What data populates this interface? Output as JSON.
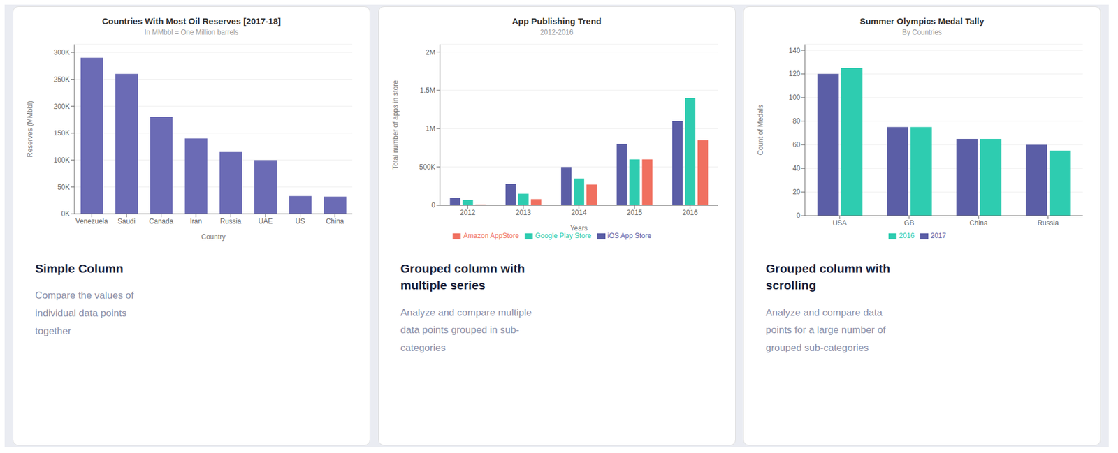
{
  "chart_data": [
    {
      "type": "bar",
      "title": "Countries With Most Oil Reserves [2017-18]",
      "subtitle": "In MMbbl = One Million barrels",
      "xlabel": "Country",
      "ylabel": "Reserves (MMbbl)",
      "categories": [
        "Venezuela",
        "Saudi",
        "Canada",
        "Iran",
        "Russia",
        "UAE",
        "US",
        "China"
      ],
      "values": [
        290000,
        260000,
        180000,
        140000,
        115000,
        100000,
        33000,
        32000
      ],
      "color": "#6b6bb5",
      "ylim": [
        0,
        315000
      ],
      "yticks": [
        {
          "value": 0,
          "label": "0K"
        },
        {
          "value": 50000,
          "label": "50K"
        },
        {
          "value": 100000,
          "label": "100K"
        },
        {
          "value": 150000,
          "label": "150K"
        },
        {
          "value": 200000,
          "label": "200K"
        },
        {
          "value": 250000,
          "label": "250K"
        },
        {
          "value": 300000,
          "label": "300K"
        }
      ],
      "grid": true,
      "annotations": [
        "Simple Column",
        "Compare the values of\nindividual data points\ntogether"
      ]
    },
    {
      "type": "bar",
      "title": "App Publishing Trend",
      "subtitle": "2012-2016",
      "xlabel": "Years",
      "ylabel": "Total number of apps in store",
      "categories": [
        "2012",
        "2013",
        "2014",
        "2015",
        "2016"
      ],
      "series": [
        {
          "name": "iOS App Store",
          "color": "#5b5ea6",
          "values": [
            100000,
            280000,
            500000,
            800000,
            1100000
          ]
        },
        {
          "name": "Google Play Store",
          "color": "#2eccb0",
          "values": [
            70000,
            150000,
            350000,
            600000,
            1400000
          ]
        },
        {
          "name": "Amazon AppStore",
          "color": "#f07060",
          "values": [
            10000,
            80000,
            270000,
            600000,
            850000
          ]
        }
      ],
      "ylim": [
        0,
        2100000
      ],
      "yticks": [
        0,
        {
          "value": 500000,
          "label": "500K"
        },
        {
          "value": 1000000,
          "label": "1M"
        },
        {
          "value": 1500000,
          "label": "1.5M"
        },
        {
          "value": 2000000,
          "label": "2M"
        }
      ],
      "grid": true,
      "legend": "bottom",
      "annotations": [
        "Grouped column with\nmultiple series",
        "Analyze and compare multiple\ndata points grouped in sub-\ncategories"
      ]
    },
    {
      "type": "bar",
      "title": "Summer Olympics Medal Tally",
      "subtitle": "By Countries",
      "ylabel": "Count of Medals",
      "categories": [
        "USA",
        "GB",
        "China",
        "Russia"
      ],
      "series": [
        {
          "name": "2017",
          "color": "#5b5ea6",
          "values": [
            120,
            75,
            65,
            60
          ]
        },
        {
          "name": "2016",
          "color": "#2eccb0",
          "values": [
            125,
            75,
            65,
            55
          ]
        }
      ],
      "ylim": [
        0,
        145
      ],
      "yticks": [
        0,
        20,
        40,
        60,
        80,
        100,
        120,
        140
      ],
      "grid": true,
      "legend": "bottom",
      "annotations": [
        "Grouped column with\nscrolling",
        "Analyze and compare data\npoints for a large number of\ngrouped sub-categories"
      ]
    }
  ]
}
